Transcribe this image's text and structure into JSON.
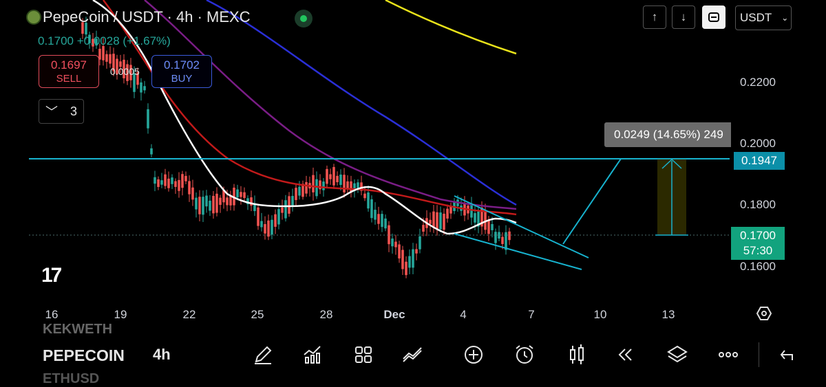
{
  "header": {
    "title": "PepeCoin / USDT · 4h · MEXC",
    "change": "0.1700 +0.0028 (+1.67%)",
    "sell_price": "0.1697",
    "sell_label": "SELL",
    "spread": "0.0005",
    "buy_price": "0.1702",
    "buy_label": "BUY",
    "indicators_count": "3"
  },
  "toolbar": {
    "up_icon": "arrow-up-icon",
    "down_icon": "arrow-down-icon",
    "screen_icon": "fullscreen-icon",
    "currency": "USDT"
  },
  "price_axis": {
    "labels": [
      "0.2200",
      "0.2000",
      "0.1800",
      "0.1600"
    ],
    "line_badge": "0.1947",
    "last_price": "0.1700",
    "countdown": "57:30"
  },
  "measure_label": "0.0249 (14.65%) 249",
  "time_axis": [
    "16",
    "19",
    "22",
    "25",
    "28",
    "Dec",
    "4",
    "7",
    "10",
    "13"
  ],
  "watermark": "17",
  "bottom_bar": {
    "symbol_prev": "KEKWETH",
    "symbol": "PEPECOIN",
    "symbol_next": "ETHUSD",
    "timeframe": "4h",
    "icons": [
      "pencil-icon",
      "indicators-icon",
      "grid-icon",
      "strategy-icon",
      "add-icon",
      "alarm-icon",
      "candle-type-icon",
      "replay-icon",
      "layers-icon",
      "more-icon",
      "back-icon"
    ]
  },
  "colors": {
    "up": "#26a69a",
    "down": "#ef5350",
    "line": "#17b3cf",
    "ema_yellow": "#e8e21a",
    "ema_blue": "#2a2fd6",
    "ema_purple": "#7a1d86",
    "ema_red": "#c21a1a",
    "ema_white": "#ffffff"
  }
}
